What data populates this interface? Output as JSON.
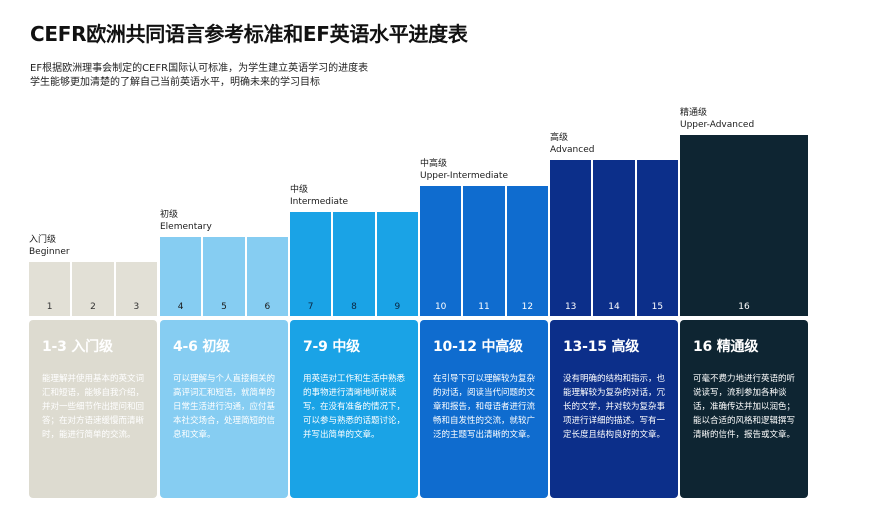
{
  "header": {
    "title": "CEFR欧洲共同语言参考标准和EF英语水平进度表",
    "subtitle_line1": "EF根据欧洲理事会制定的CEFR国际认可标准，为学生建立英语学习的进度表",
    "subtitle_line2": "学生能够更加清楚的了解自己当前英语水平，明确未来的学习目标"
  },
  "levels": [
    {
      "cn": "入门级",
      "en": "Beginner",
      "range": "1-3 入门级",
      "steps": [
        "1",
        "2",
        "3"
      ],
      "desc": "能理解并使用基本的英文词汇和短语，能够自我介绍，并对一些细节作出提问和回答；在对方语速缓慢而清晰时，能进行简单的交流。",
      "bar_color": "#e2e0d6",
      "step_text": "#333333",
      "card_color": "#dddbd0",
      "card_title": "#ffffff",
      "card_text": "#ffffff"
    },
    {
      "cn": "初级",
      "en": "Elementary",
      "range": "4-6 初级",
      "steps": [
        "4",
        "5",
        "6"
      ],
      "desc": "可以理解与个人直接相关的高评词汇和短语，就简单的日常生活进行沟通，应付基本社交场合，处理简短的信息和文章。",
      "bar_color": "#86cdf2",
      "step_text": "#1b1b1b",
      "card_color": "#86cdf2",
      "card_title": "#ffffff",
      "card_text": "#ffffff"
    },
    {
      "cn": "中级",
      "en": "Intermediate",
      "range": "7-9 中级",
      "steps": [
        "7",
        "8",
        "9"
      ],
      "desc": "用英语对工作和生活中熟悉的事物进行清晰地听说读写。在没有准备的情况下，可以参与熟悉的话题讨论，并写出简单的文章。",
      "bar_color": "#1aa3e6",
      "step_text": "#0a2540",
      "card_color": "#1aa3e6",
      "card_title": "#ffffff",
      "card_text": "#ffffff"
    },
    {
      "cn": "中高级",
      "en": "Upper-Intermediate",
      "range": "10-12 中高级",
      "steps": [
        "10",
        "11",
        "12"
      ],
      "desc": "在引导下可以理解较为复杂的对话，阅读当代问题的文章和报告，和母语者进行流畅和自发性的交流，就较广泛的主题写出清晰的文章。",
      "bar_color": "#0f6ccf",
      "step_text": "#ffffff",
      "card_color": "#0f6ccf",
      "card_title": "#ffffff",
      "card_text": "#ffffff"
    },
    {
      "cn": "高级",
      "en": "Advanced",
      "range": "13-15 高级",
      "steps": [
        "13",
        "14",
        "15"
      ],
      "desc": "没有明确的结构和指示，也能理解较为复杂的对话，冗长的文学，并对较为复杂事项进行详细的描述。写有一定长度且结构良好的文章。",
      "bar_color": "#0c2f8a",
      "step_text": "#ffffff",
      "card_color": "#0c2f8a",
      "card_title": "#ffffff",
      "card_text": "#ffffff"
    },
    {
      "cn": "精通级",
      "en": "Upper-Advanced",
      "range": "16 精通级",
      "steps": [
        "16"
      ],
      "desc": "可毫不费力地进行英语的听说读写，流利参加各种谈话，准确传达并加以润色；能以合适的风格和逻辑撰写清晰的信件，报告或文章。",
      "bar_color": "#0e2532",
      "step_text": "#ffffff",
      "card_color": "#0e2532",
      "card_title": "#ffffff",
      "card_text": "#ffffff"
    }
  ]
}
